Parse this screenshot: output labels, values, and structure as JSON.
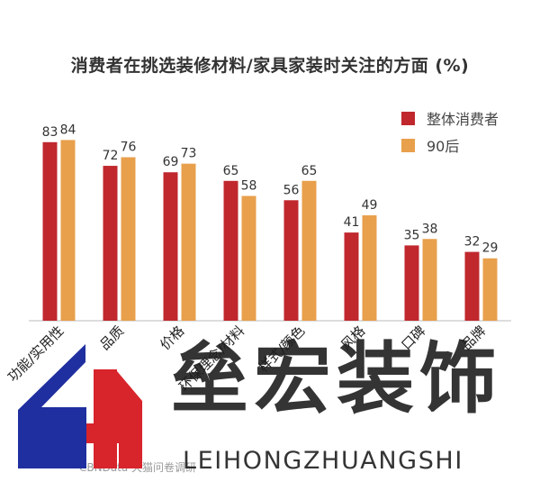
{
  "chart_data": {
    "type": "bar",
    "title": "消费者在挑选装修材料/家具家装时关注的方面 (%)",
    "categories": [
      "功能/实用性",
      "品质",
      "价格",
      "环保理念/材料",
      "样式/颜色",
      "风格",
      "口碑",
      "品牌"
    ],
    "series": [
      {
        "name": "整体消费者",
        "color": "#c0282e",
        "values": [
          83,
          72,
          69,
          65,
          56,
          41,
          35,
          32
        ]
      },
      {
        "name": "90后",
        "color": "#e8a04c",
        "values": [
          84,
          76,
          73,
          58,
          65,
          49,
          38,
          29
        ]
      }
    ],
    "ylim": [
      0,
      100
    ],
    "grid": false,
    "legend": "top-right",
    "source": "CBNData 天猫问卷调研"
  },
  "watermark": {
    "brand_cn": "垒宏装饰",
    "brand_en": "LEIHONGZHUANGSHI",
    "logo_text": "GH"
  }
}
